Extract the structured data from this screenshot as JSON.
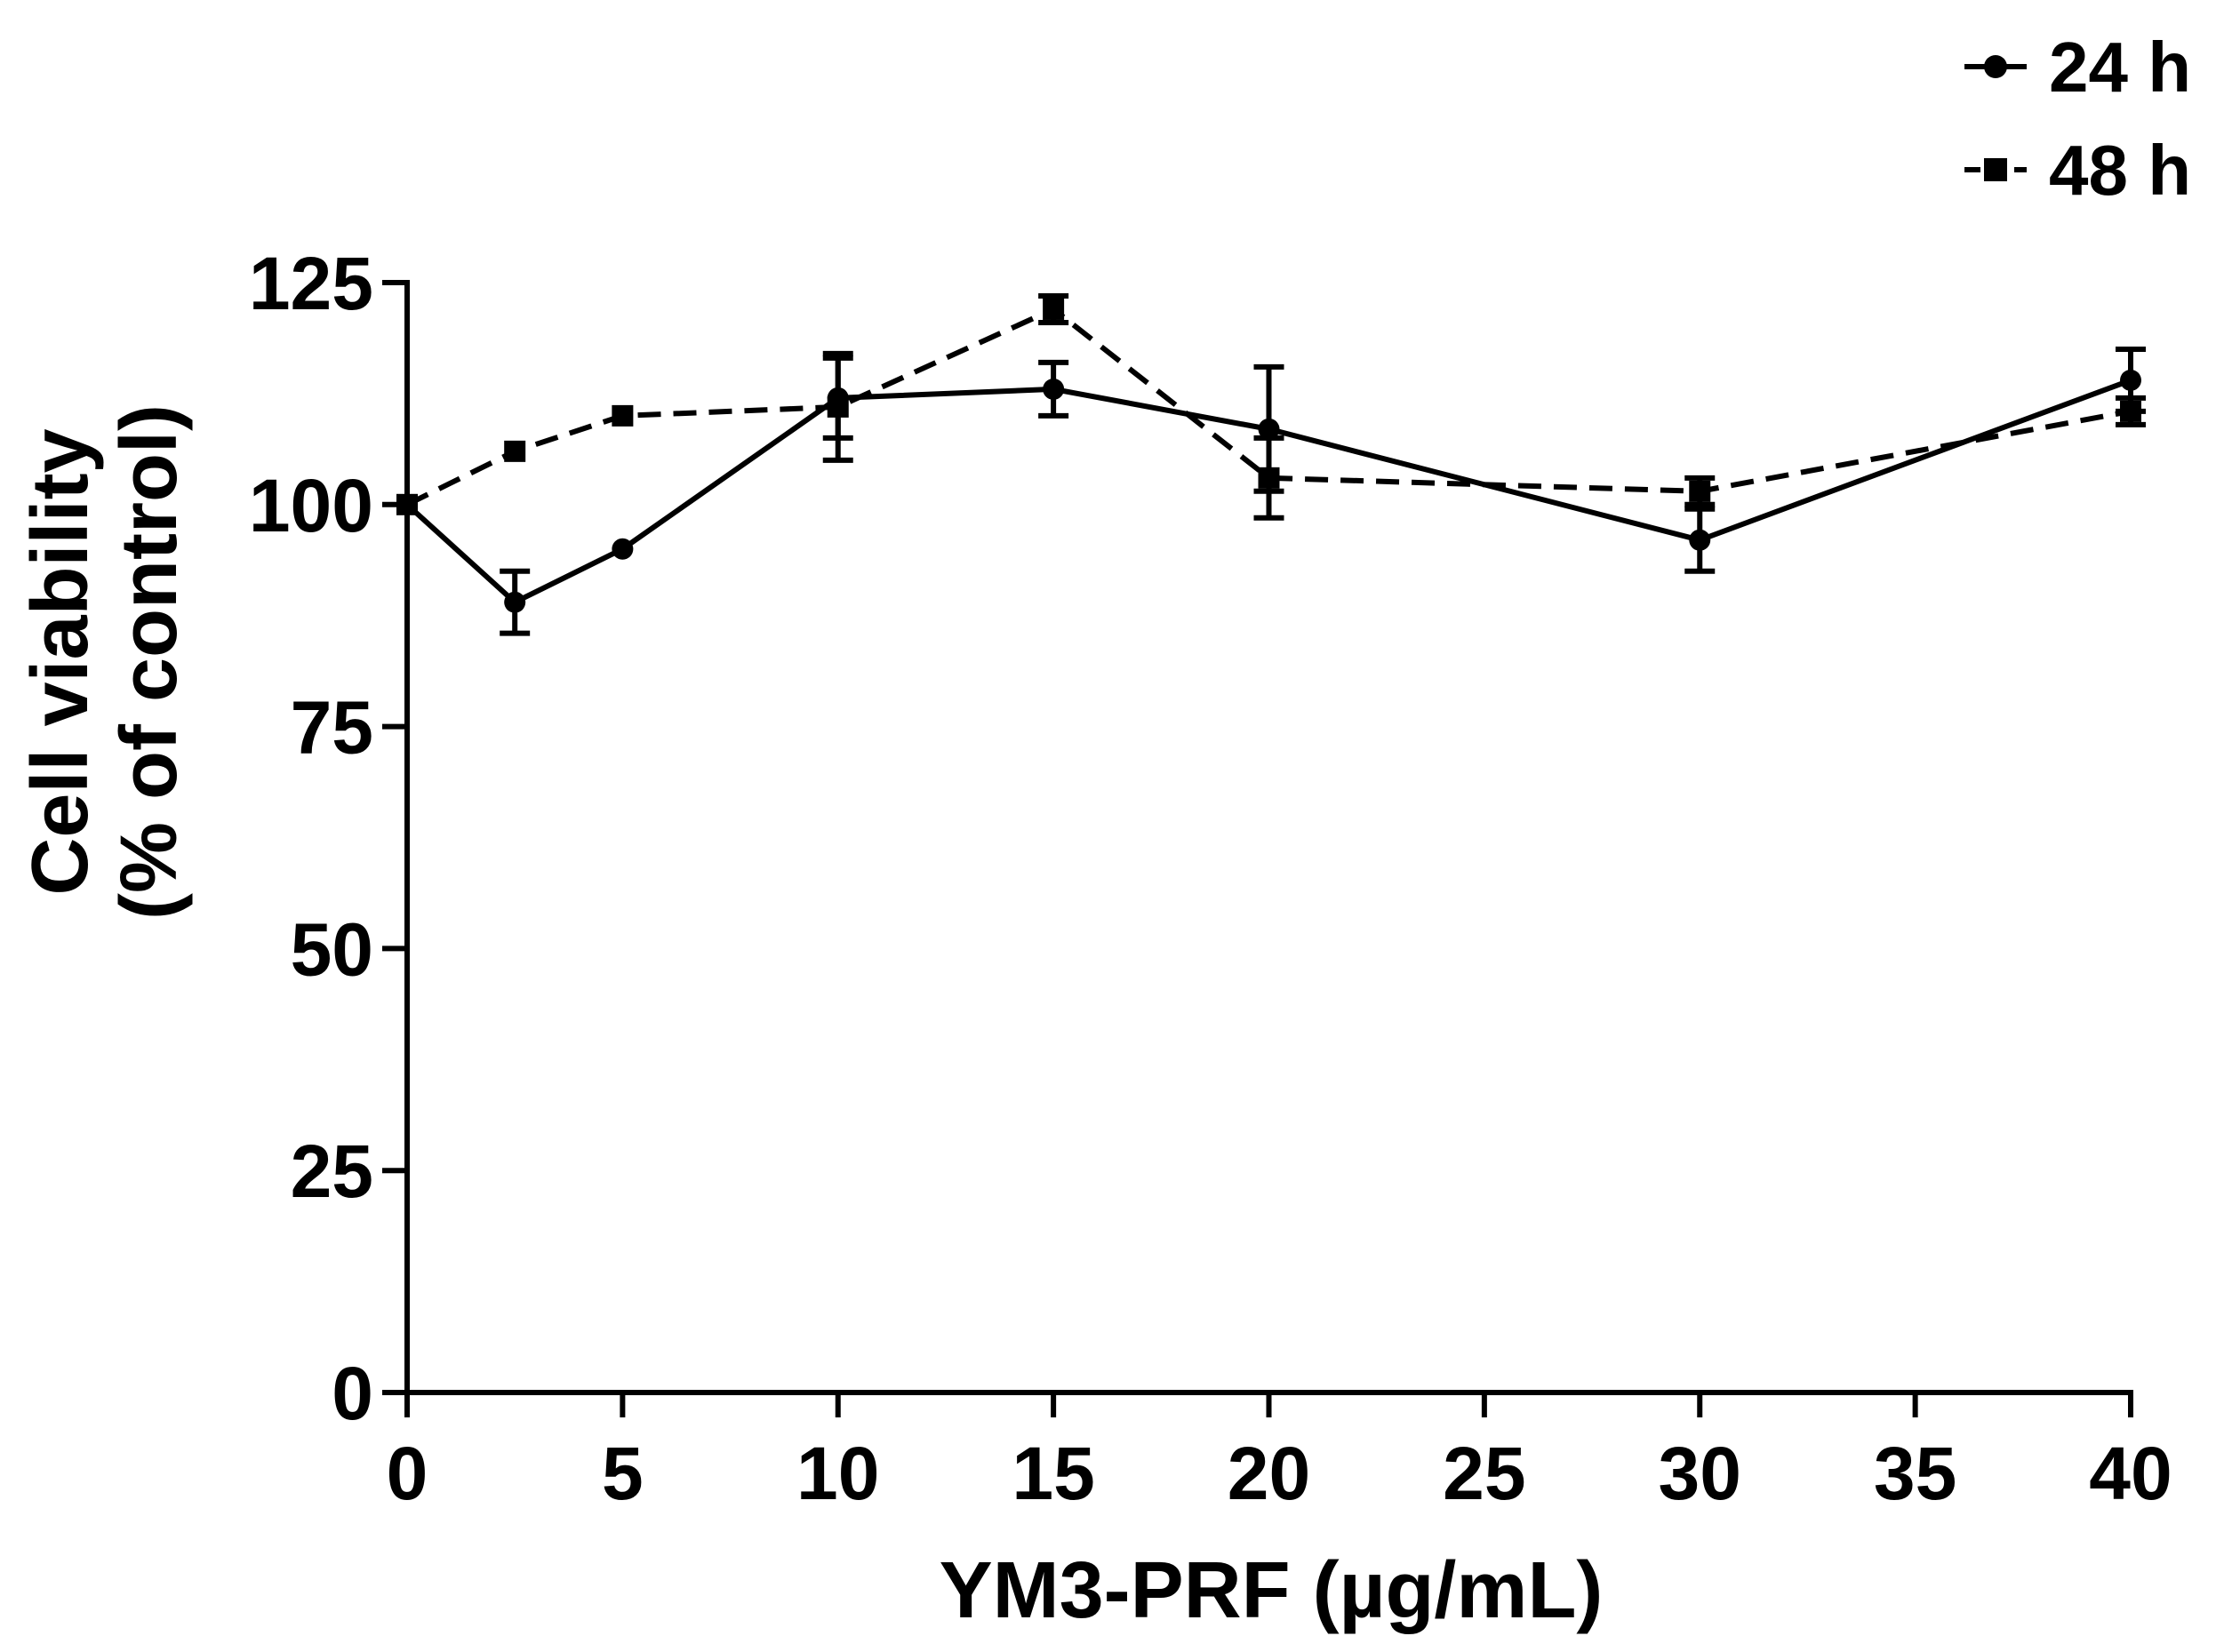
{
  "chart_data": {
    "type": "line",
    "title": "",
    "xlabel": "YM3-PRF (µg/mL)",
    "ylabel_lines": [
      "Cell viability",
      "(% of control)"
    ],
    "xlim": [
      0,
      40
    ],
    "ylim": [
      0,
      125
    ],
    "xticks": [
      0,
      5,
      10,
      15,
      20,
      25,
      30,
      35,
      40
    ],
    "yticks": [
      0,
      25,
      50,
      75,
      100,
      125
    ],
    "grid": false,
    "legend_position": "top-right",
    "series": [
      {
        "name": "24 h",
        "marker": "circle",
        "line_style": "solid",
        "x": [
          0,
          2.5,
          5,
          10,
          15,
          20,
          30,
          40
        ],
        "y": [
          100,
          89,
          95,
          112,
          113,
          108.5,
          96,
          114
        ],
        "error": [
          0,
          3.5,
          0,
          4.5,
          3,
          7,
          3.5,
          3.5
        ]
      },
      {
        "name": "48 h",
        "marker": "square",
        "line_style": "dashed",
        "x": [
          0,
          2.5,
          5,
          10,
          15,
          20,
          30,
          40
        ],
        "y": [
          100,
          106,
          110,
          111,
          122,
          103,
          101.5,
          110.5
        ],
        "error": [
          0,
          0,
          0,
          6,
          1.5,
          4.5,
          1.5,
          1.5
        ]
      }
    ]
  }
}
